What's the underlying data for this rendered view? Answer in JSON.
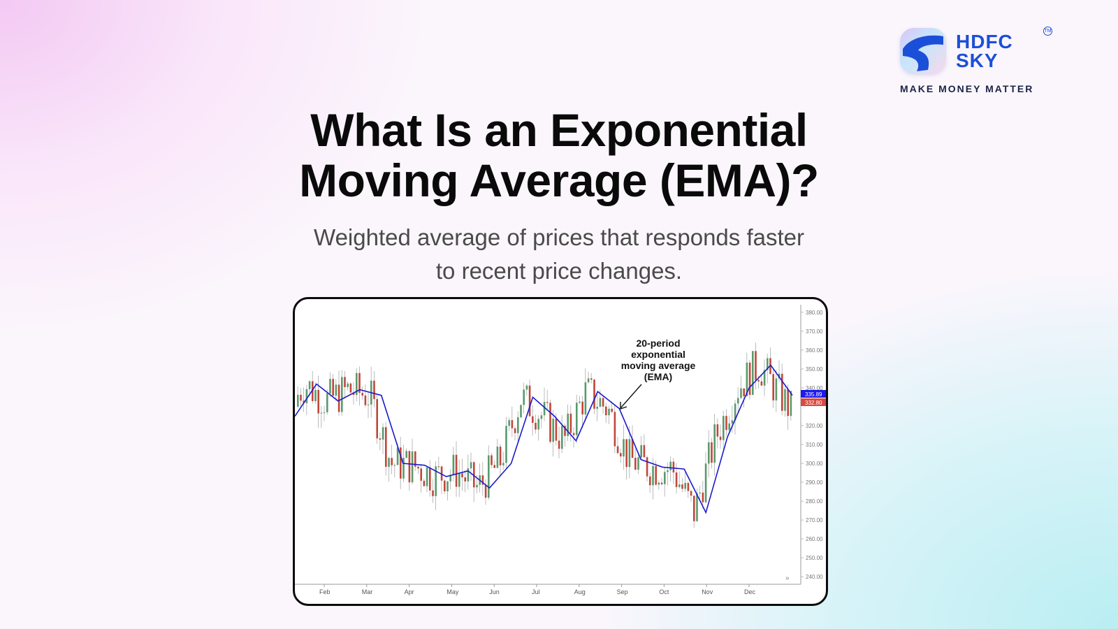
{
  "brand": {
    "name_line1": "HDFC",
    "name_line2": "SKY",
    "tm": "TM",
    "tagline": "MAKE MONEY MATTER",
    "color": "#1c4fd8"
  },
  "header": {
    "title_line1": "What Is an Exponential",
    "title_line2": "Moving Average (EMA)?",
    "subtitle_line1": "Weighted average of prices that responds faster",
    "subtitle_line2": "to recent price changes."
  },
  "chart": {
    "annotation_line1": "20-period",
    "annotation_line2": "exponential",
    "annotation_line3": "moving average",
    "annotation_line4": "(EMA)",
    "ema_tag": "335.89",
    "price_tag": "332.80",
    "scroll_icon": "»"
  },
  "chart_data": {
    "type": "candlestick",
    "title": "",
    "xlabel": "",
    "ylabel": "",
    "ylim": [
      236,
      384
    ],
    "y_ticks": [
      "380.00",
      "370.00",
      "360.00",
      "350.00",
      "340.00",
      "320.00",
      "310.00",
      "300.00",
      "290.00",
      "280.00",
      "270.00",
      "260.00",
      "250.00",
      "240.00"
    ],
    "x_ticks": [
      "Feb",
      "Mar",
      "Apr",
      "May",
      "Jun",
      "Jul",
      "Aug",
      "Sep",
      "Oct",
      "Nov",
      "Dec"
    ],
    "series": [
      {
        "name": "20-period EMA",
        "color": "#1a1acc",
        "x": [
          "Jan",
          "Feb",
          "Feb-mid",
          "Mar",
          "Mar-mid",
          "Apr",
          "Apr-mid",
          "May",
          "May-mid",
          "Jun",
          "Jun-mid",
          "Jul",
          "Jul-mid",
          "Aug",
          "Aug-mid",
          "Sep",
          "Sep-mid",
          "Oct",
          "Oct-mid",
          "Nov",
          "Nov-mid",
          "Dec",
          "Dec-mid",
          "end"
        ],
        "values": [
          325,
          342,
          333,
          339,
          336,
          300,
          299,
          293,
          296,
          287,
          300,
          335,
          325,
          312,
          338,
          329,
          302,
          298,
          297,
          274,
          314,
          340,
          352,
          336
        ]
      },
      {
        "name": "Price (candles)",
        "up_color": "#5a9a6e",
        "down_color": "#c0473a",
        "last_close": 332.8
      }
    ],
    "price_labels": {
      "ema": 335.89,
      "last_price": 332.8
    },
    "annotations": [
      "20-period exponential moving average (EMA)"
    ],
    "grid": false,
    "legend": "none"
  }
}
